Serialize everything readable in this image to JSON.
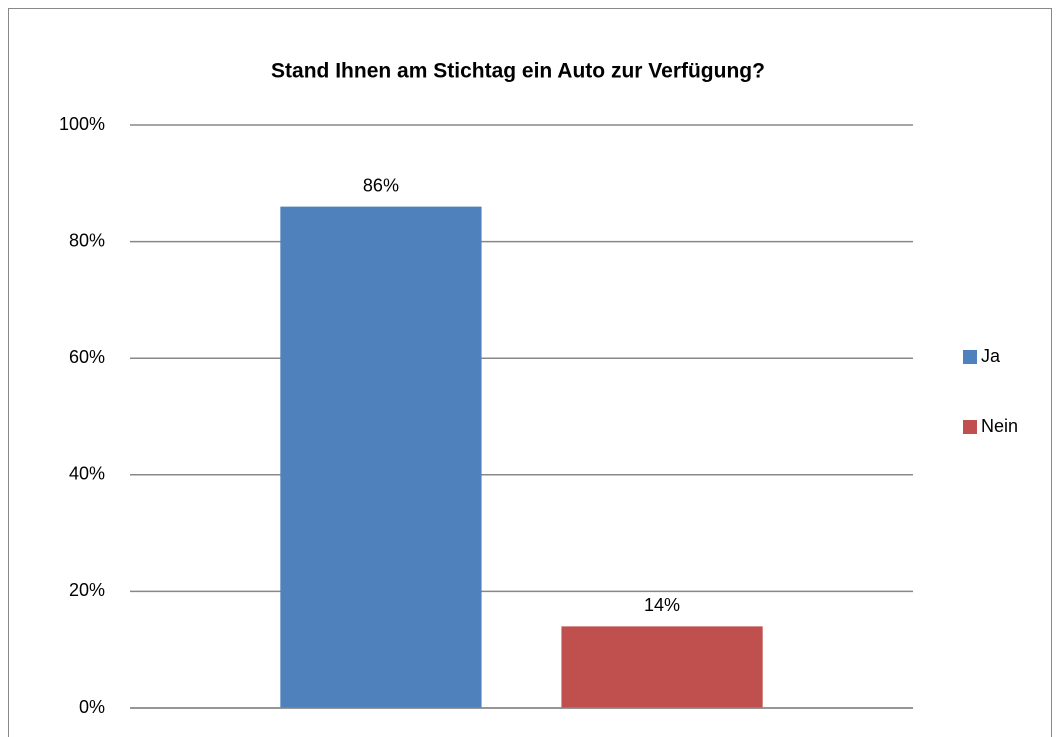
{
  "chart_data": {
    "type": "bar",
    "title": "Stand Ihnen am Stichtag ein Auto zur Verfügung?",
    "categories": [
      null
    ],
    "series": [
      {
        "name": "Ja",
        "color": "#4f81bd",
        "values": [
          86
        ],
        "value_labels": [
          "86%"
        ]
      },
      {
        "name": "Nein",
        "color": "#c0504d",
        "values": [
          14
        ],
        "value_labels": [
          "14%"
        ]
      }
    ],
    "ylim": [
      0,
      100
    ],
    "yticks": [
      {
        "value": 0,
        "label": "0%"
      },
      {
        "value": 20,
        "label": "20%"
      },
      {
        "value": 40,
        "label": "40%"
      },
      {
        "value": 60,
        "label": "60%"
      },
      {
        "value": 80,
        "label": "80%"
      },
      {
        "value": 100,
        "label": "100%"
      }
    ],
    "grid": true,
    "legend": "right"
  }
}
